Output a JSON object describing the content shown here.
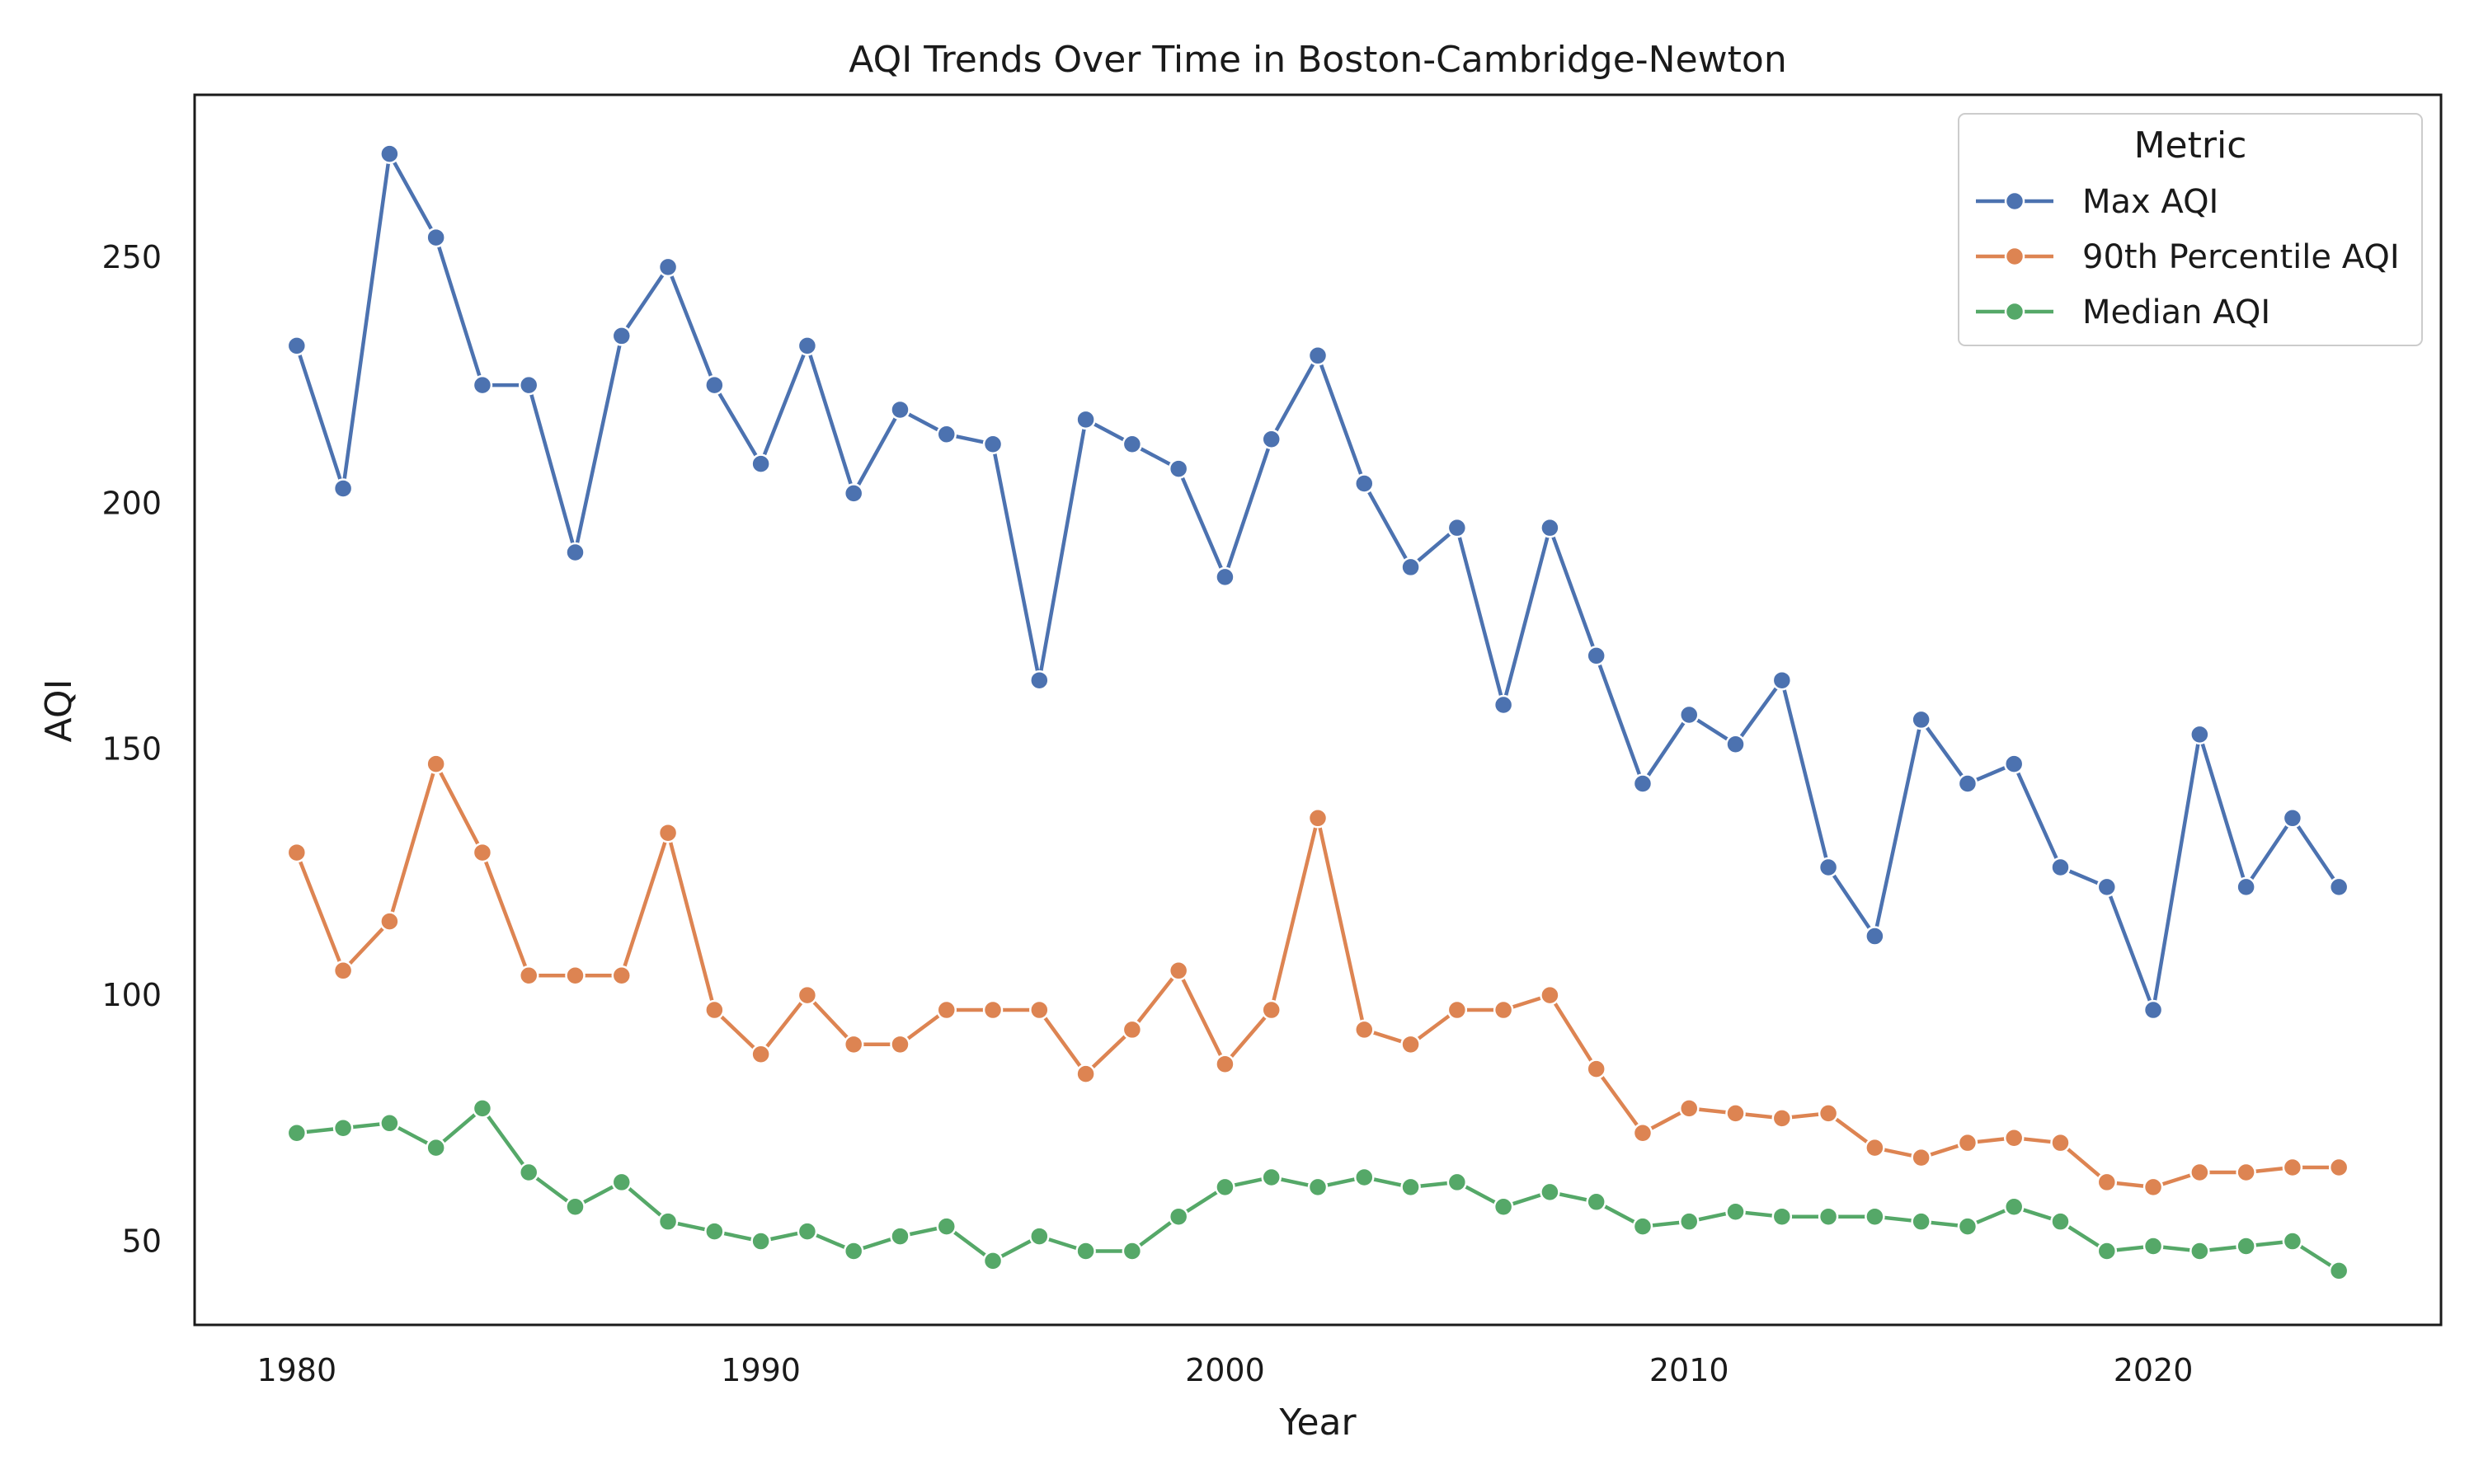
{
  "chart_data": {
    "type": "line",
    "title": "AQI Trends Over Time in Boston-Cambridge-Newton",
    "xlabel": "Year",
    "ylabel": "AQI",
    "xlim": [
      1977.8,
      2026.2
    ],
    "ylim": [
      33,
      283
    ],
    "x_ticks": [
      1980,
      1990,
      2000,
      2010,
      2020
    ],
    "y_ticks": [
      50,
      100,
      150,
      200,
      250
    ],
    "grid": false,
    "legend": {
      "title": "Metric",
      "position": "top-right"
    },
    "x": [
      1980,
      1981,
      1982,
      1983,
      1984,
      1985,
      1986,
      1987,
      1988,
      1989,
      1990,
      1991,
      1992,
      1993,
      1994,
      1995,
      1996,
      1997,
      1998,
      1999,
      2000,
      2001,
      2002,
      2003,
      2004,
      2005,
      2006,
      2007,
      2008,
      2009,
      2010,
      2011,
      2012,
      2013,
      2014,
      2015,
      2016,
      2017,
      2018,
      2019,
      2020,
      2021,
      2022,
      2023,
      2024
    ],
    "series": [
      {
        "name": "Max AQI",
        "color": "#4c72b0",
        "values": [
          232,
          203,
          271,
          254,
          224,
          224,
          190,
          234,
          248,
          224,
          208,
          232,
          202,
          219,
          214,
          212,
          164,
          217,
          212,
          207,
          185,
          213,
          230,
          204,
          187,
          195,
          159,
          195,
          169,
          143,
          157,
          151,
          164,
          126,
          112,
          156,
          143,
          147,
          126,
          122,
          97,
          153,
          122,
          136,
          122
        ]
      },
      {
        "name": "90th Percentile AQI",
        "color": "#dd8452",
        "values": [
          129,
          105,
          115,
          147,
          129,
          104,
          104,
          104,
          133,
          97,
          88,
          100,
          90,
          90,
          97,
          97,
          97,
          84,
          93,
          105,
          86,
          97,
          136,
          93,
          90,
          97,
          97,
          100,
          85,
          72,
          77,
          76,
          75,
          76,
          69,
          67,
          70,
          71,
          70,
          62,
          61,
          64,
          64,
          65,
          65
        ]
      },
      {
        "name": "Median AQI",
        "color": "#55a868",
        "values": [
          72,
          73,
          74,
          69,
          77,
          64,
          57,
          62,
          54,
          52,
          50,
          52,
          48,
          51,
          53,
          46,
          51,
          48,
          48,
          55,
          61,
          63,
          61,
          63,
          61,
          62,
          57,
          60,
          58,
          53,
          54,
          56,
          55,
          55,
          55,
          54,
          53,
          57,
          54,
          48,
          49,
          48,
          49,
          50,
          44
        ]
      }
    ]
  }
}
